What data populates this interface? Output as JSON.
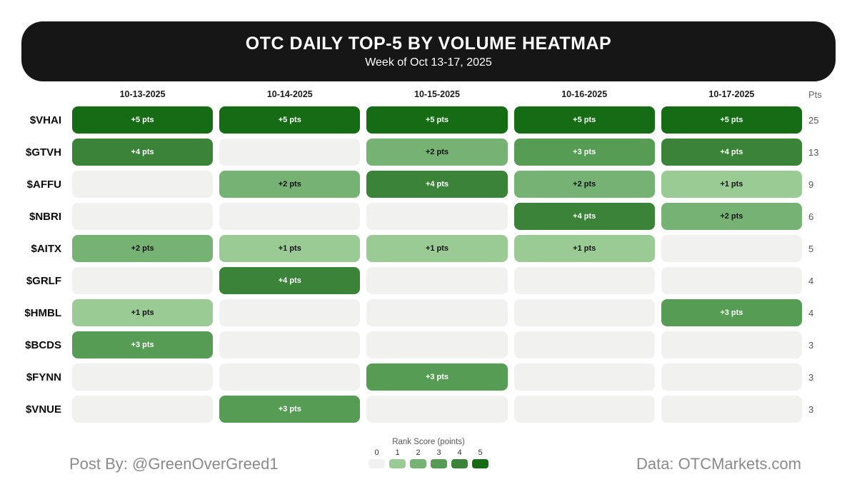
{
  "banner": {
    "title": "OTC DAILY TOP-5 BY VOLUME HEATMAP",
    "subtitle": "Week of Oct 13-17, 2025",
    "background": "#161616",
    "text_color": "#ffffff"
  },
  "chart_data": {
    "type": "heatmap",
    "title": "OTC DAILY TOP-5 BY VOLUME HEATMAP",
    "subtitle": "Week of Oct 13-17, 2025",
    "columns": [
      "10-13-2025",
      "10-14-2025",
      "10-15-2025",
      "10-16-2025",
      "10-17-2025"
    ],
    "pts_header": "Pts",
    "rows": [
      {
        "ticker": "$VHAI",
        "scores": [
          5,
          5,
          5,
          5,
          5
        ],
        "pts": 25
      },
      {
        "ticker": "$GTVH",
        "scores": [
          4,
          0,
          2,
          3,
          4
        ],
        "pts": 13
      },
      {
        "ticker": "$AFFU",
        "scores": [
          0,
          2,
          4,
          2,
          1
        ],
        "pts": 9
      },
      {
        "ticker": "$NBRI",
        "scores": [
          0,
          0,
          0,
          4,
          2
        ],
        "pts": 6
      },
      {
        "ticker": "$AITX",
        "scores": [
          2,
          1,
          1,
          1,
          0
        ],
        "pts": 5
      },
      {
        "ticker": "$GRLF",
        "scores": [
          0,
          4,
          0,
          0,
          0
        ],
        "pts": 4
      },
      {
        "ticker": "$HMBL",
        "scores": [
          1,
          0,
          0,
          0,
          3
        ],
        "pts": 4
      },
      {
        "ticker": "$BCDS",
        "scores": [
          3,
          0,
          0,
          0,
          0
        ],
        "pts": 3
      },
      {
        "ticker": "$FYNN",
        "scores": [
          0,
          0,
          3,
          0,
          0
        ],
        "pts": 3
      },
      {
        "ticker": "$VNUE",
        "scores": [
          0,
          3,
          0,
          0,
          0
        ],
        "pts": 3
      }
    ],
    "cell_label_suffix": " pts",
    "palette": {
      "0": "#f1f1ef",
      "1": "#9acb95",
      "2": "#76b274",
      "3": "#579c55",
      "4": "#3a8338",
      "5": "#156c15"
    },
    "cell_text_dark": "#111111",
    "cell_text_light": "#ffffff",
    "white_text_from_score": 3,
    "legend": {
      "title": "Rank Score (points)",
      "labels": [
        "0",
        "1",
        "2",
        "3",
        "4",
        "5"
      ]
    }
  },
  "footer": {
    "left": "Post By: @GreenOverGreed1",
    "right": "Data: OTCMarkets.com"
  }
}
